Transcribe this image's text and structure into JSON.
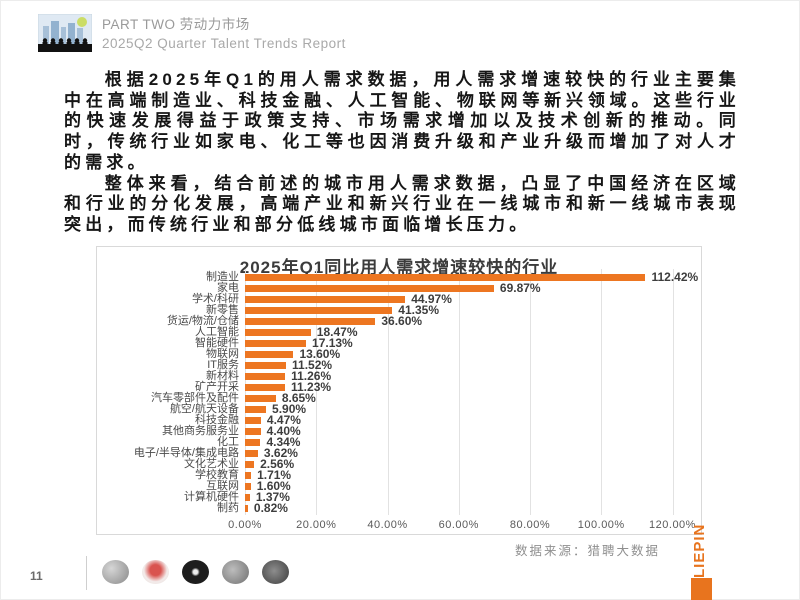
{
  "header": {
    "part_label": "PART TWO 劳动力市场",
    "report_title": "2025Q2 Quarter Talent Trends Report",
    "logo_icon": "city-crowd-logo"
  },
  "body": {
    "paragraph1": "根据2025年Q1的用人需求数据，用人需求增速较快的行业主要集中在高端制造业、科技金融、人工智能、物联网等新兴领域。这些行业的快速发展得益于政策支持、市场需求增加以及技术创新的推动。同时，传统行业如家电、化工等也因消费升级和产业升级而增加了对人才的需求。",
    "paragraph2": "整体来看，结合前述的城市用人需求数据，凸显了中国经济在区域和行业的分化发展，高端产业和新兴行业在一线城市和新一线城市表现突出，而传统行业和部分低线城市面临增长压力。"
  },
  "chart_data": {
    "type": "bar",
    "orientation": "horizontal",
    "title": "2025年Q1同比用人需求增速较快的行业",
    "categories": [
      "制造业",
      "家电",
      "学术/科研",
      "新零售",
      "货运/物流/仓储",
      "人工智能",
      "智能硬件",
      "物联网",
      "IT服务",
      "新材料",
      "矿产开采",
      "汽车零部件及配件",
      "航空/航天设备",
      "科技金融",
      "其他商务服务业",
      "化工",
      "电子/半导体/集成电路",
      "文化艺术业",
      "学校教育",
      "互联网",
      "计算机硬件",
      "制药"
    ],
    "values": [
      112.42,
      69.87,
      44.97,
      41.35,
      36.6,
      18.47,
      17.13,
      13.6,
      11.52,
      11.26,
      11.23,
      8.65,
      5.9,
      4.47,
      4.4,
      4.34,
      3.62,
      2.56,
      1.71,
      1.6,
      1.37,
      0.82
    ],
    "value_labels": [
      "112.42%",
      "69.87%",
      "44.97%",
      "41.35%",
      "36.60%",
      "18.47%",
      "17.13%",
      "13.60%",
      "11.52%",
      "11.26%",
      "11.23%",
      "8.65%",
      "5.90%",
      "4.47%",
      "4.40%",
      "4.34%",
      "3.62%",
      "2.56%",
      "1.71%",
      "1.60%",
      "1.37%",
      "0.82%"
    ],
    "x_ticks": [
      "0.00%",
      "20.00%",
      "40.00%",
      "60.00%",
      "80.00%",
      "100.00%",
      "120.00%"
    ],
    "x_tick_values": [
      0,
      20,
      40,
      60,
      80,
      100,
      120
    ],
    "xlim": [
      0,
      128
    ],
    "grid": true,
    "legend": false,
    "bar_color": "#ED7621",
    "source_note": "数据来源：猎聘大数据"
  },
  "footer": {
    "page_number": "11",
    "stamp_icons": [
      "stamp-photo-1",
      "stamp-photo-2",
      "stamp-photo-3",
      "stamp-photo-4",
      "stamp-photo-5"
    ]
  },
  "brand": {
    "vertical_text": "LIEPIN",
    "accent_color": "#E8741E"
  }
}
